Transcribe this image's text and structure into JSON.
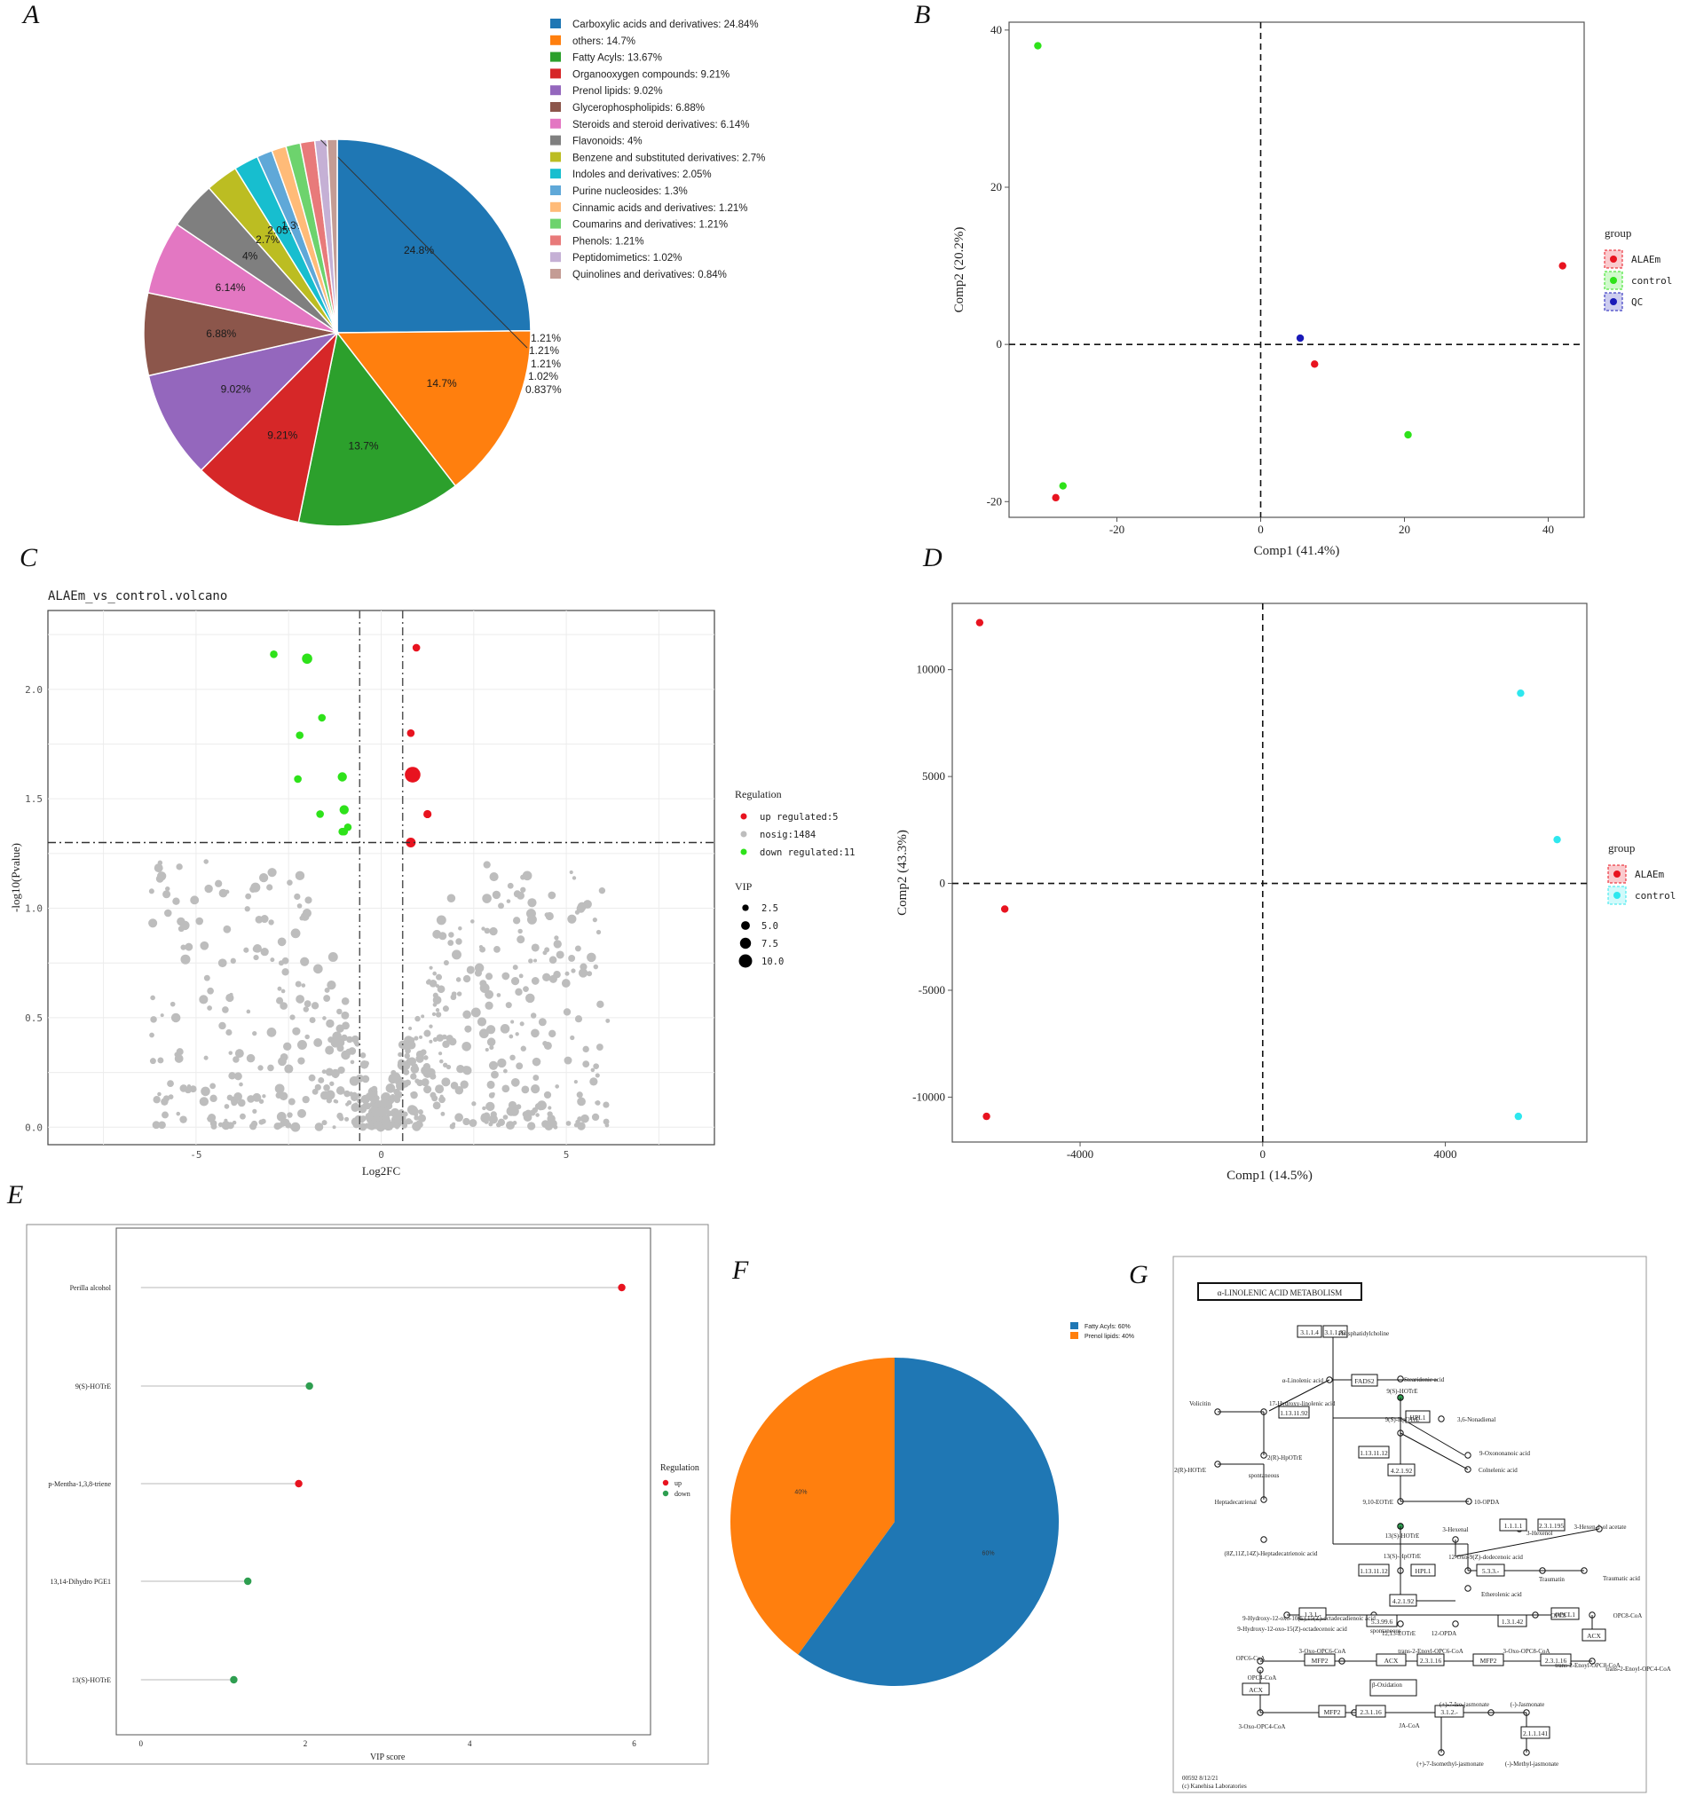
{
  "panels": {
    "a": "A",
    "b": "B",
    "c": "C",
    "d": "D",
    "e": "E",
    "f": "F",
    "g": "G"
  },
  "chart_data": [
    {
      "id": "A",
      "type": "pie",
      "categories": [
        "Carboxylic acids and derivatives",
        "others",
        "Fatty Acyls",
        "Organooxygen compounds",
        "Prenol lipids",
        "Glycerophospholipids",
        "Steroids and steroid derivatives",
        "Flavonoids",
        "Benzene and substituted derivatives",
        "Indoles and derivatives",
        "Purine nucleosides",
        "Cinnamic acids and derivatives",
        "Coumarins and derivatives",
        "Phenols",
        "Peptidomimetics",
        "Quinolines and derivatives"
      ],
      "values": [
        24.84,
        14.7,
        13.67,
        9.21,
        9.02,
        6.88,
        6.14,
        4,
        2.7,
        2.05,
        1.3,
        1.21,
        1.21,
        1.21,
        1.02,
        0.84
      ],
      "legend": [
        "Carboxylic acids and derivatives: 24.84%",
        "others: 14.7%",
        "Fatty Acyls: 13.67%",
        "Organooxygen compounds: 9.21%",
        "Prenol lipids: 9.02%",
        "Glycerophospholipids: 6.88%",
        "Steroids and steroid derivatives: 6.14%",
        "Flavonoids: 4%",
        "Benzene and substituted derivatives: 2.7%",
        "Indoles and derivatives: 2.05%",
        "Purine nucleosides: 1.3%",
        "Cinnamic acids and derivatives: 1.21%",
        "Coumarins and derivatives: 1.21%",
        "Phenols: 1.21%",
        "Peptidomimetics: 1.02%",
        "Quinolines and derivatives: 0.84%"
      ],
      "labels": [
        "24.8%",
        "14.7%",
        "13.7%",
        "9.21%",
        "9.02%",
        "6.88%",
        "6.14%",
        "4%",
        "2.7%",
        "2.05%",
        "1.3%",
        "1.21%",
        "1.21%",
        "1.21%",
        "1.02%",
        "0.837%"
      ],
      "colors": [
        "#1f77b4",
        "#ff7f0e",
        "#2ca02c",
        "#d62728",
        "#9467bd",
        "#8c564b",
        "#e377c2",
        "#7f7f7f",
        "#bcbd22",
        "#17becf",
        "#5fa8d8",
        "#ffbb78",
        "#6dd36d",
        "#e87a7a",
        "#c5b0d5",
        "#c49c94"
      ]
    },
    {
      "id": "B",
      "type": "scatter",
      "xlabel": "Comp1 (41.4%)",
      "ylabel": "Comp2 (20.2%)",
      "xlim": [
        -35,
        45
      ],
      "ylim": [
        -22,
        41
      ],
      "xticks": [
        -20,
        0,
        20,
        40
      ],
      "yticks": [
        -20,
        0,
        20,
        40
      ],
      "legend_title": "group",
      "series": [
        {
          "name": "ALAEm",
          "color": "#e8131f",
          "x": [
            42,
            7.5,
            -28.5
          ],
          "y": [
            10,
            -2.5,
            -19.5
          ]
        },
        {
          "name": "control",
          "color": "#2ee21a",
          "x": [
            -31,
            20.5,
            -27.5
          ],
          "y": [
            38,
            -11.5,
            -18
          ]
        },
        {
          "name": "QC",
          "color": "#1a1ab8",
          "x": [
            5.5
          ],
          "y": [
            0.8
          ]
        }
      ],
      "hlines": [
        0
      ],
      "vlines": [
        0
      ]
    },
    {
      "id": "C",
      "type": "scatter",
      "title": "ALAEm_vs_control.volcano",
      "xlabel": "Log2FC",
      "ylabel": "-log10(Pvalue)",
      "xlim": [
        -9,
        9
      ],
      "ylim": [
        -0.08,
        2.36
      ],
      "xticks": [
        -5,
        0,
        5
      ],
      "yticks": [
        0.0,
        0.5,
        1.0,
        1.5,
        2.0
      ],
      "thresholds": {
        "log2fc": [
          -0.58,
          0.58
        ],
        "pvalue_line": 1.3
      },
      "legend": {
        "title": "Regulation",
        "items": [
          "up regulated:5",
          "nosig:1484",
          "down regulated:11"
        ],
        "colors": [
          "#e8131f",
          "#bdbdbd",
          "#2ee21a"
        ]
      },
      "size_legend": {
        "title": "VIP",
        "items": [
          "2.5",
          "5.0",
          "7.5",
          "10.0"
        ],
        "values": [
          2.5,
          5,
          7.5,
          10
        ]
      },
      "up": {
        "x": [
          0.95,
          0.8,
          0.85,
          1.25,
          0.8
        ],
        "y": [
          2.19,
          1.8,
          1.61,
          1.43,
          1.3
        ],
        "vip": [
          2.5,
          2.5,
          10,
          3,
          4.5
        ]
      },
      "down": {
        "x": [
          -2.9,
          -2.0,
          -1.6,
          -2.2,
          -2.25,
          -1.05,
          -1.0,
          -1.65,
          -1.0,
          -0.9,
          -1.05
        ],
        "y": [
          2.16,
          2.14,
          1.87,
          1.79,
          1.59,
          1.6,
          1.45,
          1.43,
          1.35,
          1.37,
          1.35
        ],
        "vip": [
          2.5,
          5,
          2.5,
          2.5,
          2.5,
          4,
          4,
          2.5,
          2.5,
          2.5,
          2.5
        ]
      },
      "nosig_count": 1484
    },
    {
      "id": "D",
      "type": "scatter",
      "xlabel": "Comp1 (14.5%)",
      "ylabel": "Comp2 (43.3%)",
      "xlim": [
        -6800,
        7100
      ],
      "ylim": [
        -12100,
        13100
      ],
      "xticks": [
        -4000,
        0,
        4000
      ],
      "yticks": [
        -10000,
        -5000,
        0,
        5000,
        10000
      ],
      "legend_title": "group",
      "series": [
        {
          "name": "ALAEm",
          "color": "#e8131f",
          "x": [
            -6200,
            -5650,
            -6050
          ],
          "y": [
            12200,
            -1200,
            -10900
          ]
        },
        {
          "name": "control",
          "color": "#2ee7ee",
          "x": [
            5650,
            6450,
            5600
          ],
          "y": [
            8900,
            2050,
            -10900
          ]
        }
      ],
      "hlines": [
        0
      ],
      "vlines": [
        0
      ]
    },
    {
      "id": "E",
      "type": "scatter",
      "xlabel": "VIP score",
      "xlim": [
        -0.3,
        6.2
      ],
      "xticks": [
        0,
        2,
        4,
        6
      ],
      "categories": [
        "Perilla alcohol",
        "9(S)-HOTrE",
        "p-Mentha-1,3,8-triene",
        "13,14-Dihydro PGE1",
        "13(S)-HOTrE"
      ],
      "values": [
        5.85,
        2.05,
        1.92,
        1.3,
        1.13
      ],
      "regulation": [
        "up",
        "down",
        "up",
        "down",
        "down"
      ],
      "legend": {
        "title": "Regulation",
        "items": [
          "up",
          "down"
        ],
        "colors": [
          "#e8131f",
          "#2e9e50"
        ]
      }
    },
    {
      "id": "F",
      "type": "pie",
      "categories": [
        "Fatty Acyls",
        "Prenol lipids"
      ],
      "values": [
        60,
        40
      ],
      "legend": [
        "Fatty Acyls: 60%",
        "Prenol lipids: 40%"
      ],
      "labels": [
        "60%",
        "40%"
      ],
      "colors": [
        "#1f77b4",
        "#ff7f0e"
      ]
    }
  ],
  "pathway": {
    "title": "α-LINOLENIC ACID METABOLISM",
    "footer": [
      "00592 8/12/21",
      "(c) Kanehisa Laboratories"
    ],
    "compounds": [
      "Phosphatidylcholine",
      "α-Linolenic acid",
      "Stearidonic acid",
      "Volicitin",
      "17-Hydroxy-linolenic acid",
      "9(S)-HOTrE",
      "3,6-Nonadienal",
      "9(S)-HpOTrE",
      "9-Oxononanoic acid",
      "2(R)-HpOTrE",
      "2(R)-HOTrE",
      "spontaneous",
      "Colnelenic acid",
      "9,10-EOTrE",
      "10-OPDA",
      "Heptadecatrienal",
      "3-Hexenal",
      "3-Hexen-1-ol acetate",
      "13(S)-HOTrE",
      "3-Hexenol",
      "(8Z,11Z,14Z)-Heptadecatrienoic acid",
      "13(S)-HpOTrE",
      "12-Oxo-9(Z)-dodecenoic acid",
      "Traumatin",
      "Traumatic acid",
      "Etherolenic acid",
      "9-Hydroxy-12-oxo-10(E),15(Z)-octadecadienoic acid",
      "spontaneous",
      "9-Hydroxy-12-oxo-15(Z)-octadecenoic acid",
      "12,13-EOTrE",
      "12-OPDA",
      "OPC8",
      "OPC8-CoA",
      "OPC6-CoA",
      "3-Oxo-OPC6-CoA",
      "trans-2-Enoyl-OPC6-CoA",
      "3-Oxo-OPC8-CoA",
      "trans-2-Enoyl-OPC8-CoA",
      "OPC4-CoA",
      "β-Oxidation",
      "trans-2-Enoyl-OPC4-CoA",
      "3-Oxo-OPC4-CoA",
      "JA-CoA",
      "(+)-7-Iso-jasmonate",
      "(-)-Jasmonate",
      "(+)-7-Isomethyl-jasmonate",
      "(-)-Methyl-jasmonate"
    ],
    "enzymes": [
      "3.1.1.4",
      "3.1.1.32",
      "FADS2",
      "1.13.11.92",
      "1.13.11.12",
      "HPL1",
      "4.2.1.92",
      "1.1.1.1",
      "2.3.1.195",
      "1.13.11.12",
      "HPL1",
      "5.3.3.-",
      "4.2.1.92",
      "1.3.1.-",
      "5.3.99.6",
      "1.3.1.42",
      "OPCL1",
      "ACX",
      "MFP2",
      "ACX",
      "2.3.1.16",
      "MFP2",
      "2.3.1.16",
      "ACX",
      "MFP2",
      "2.3.1.16",
      "3.1.2.-",
      "2.1.1.141"
    ]
  }
}
